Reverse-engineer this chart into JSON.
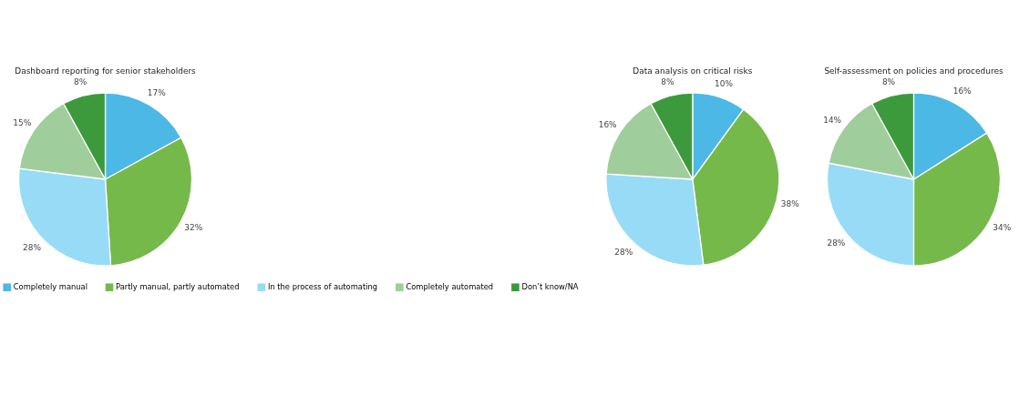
{
  "chart_data": [
    {
      "type": "pie",
      "title": "Dashboard reporting for senior stakeholders",
      "categories": [
        "Completely manual",
        "Partly manual, partly automated",
        "In the process of automating",
        "Completely automated",
        "Don’t know/NA"
      ],
      "values": [
        17,
        32,
        28,
        15,
        8
      ],
      "value_labels": [
        "17%",
        "32%",
        "28%",
        "15%",
        "8%"
      ],
      "colors": [
        "#4cb8e6",
        "#76b94b",
        "#97dbf7",
        "#a0cd9c",
        "#3d9a3c"
      ],
      "legend": "bottom"
    },
    {
      "type": "pie",
      "title": "Data analysis on critical risks",
      "categories": [
        null,
        null,
        null,
        null,
        null
      ],
      "values": [
        10,
        38,
        28,
        16,
        8
      ],
      "value_labels": [
        "10%",
        "38%",
        "28%",
        "16%",
        "8%"
      ],
      "colors": [
        "#4cb8e6",
        "#76b94b",
        "#97dbf7",
        "#a0cd9c",
        "#3d9a3c"
      ]
    },
    {
      "type": "pie",
      "title": "Self-assessment on policies and procedures",
      "categories": [
        null,
        null,
        null,
        null,
        null
      ],
      "values": [
        16,
        34,
        28,
        14,
        8
      ],
      "value_labels": [
        "16%",
        "34%",
        "28%",
        "14%",
        "8%"
      ],
      "colors": [
        "#4cb8e6",
        "#76b94b",
        "#97dbf7",
        "#a0cd9c",
        "#3d9a3c"
      ]
    }
  ]
}
